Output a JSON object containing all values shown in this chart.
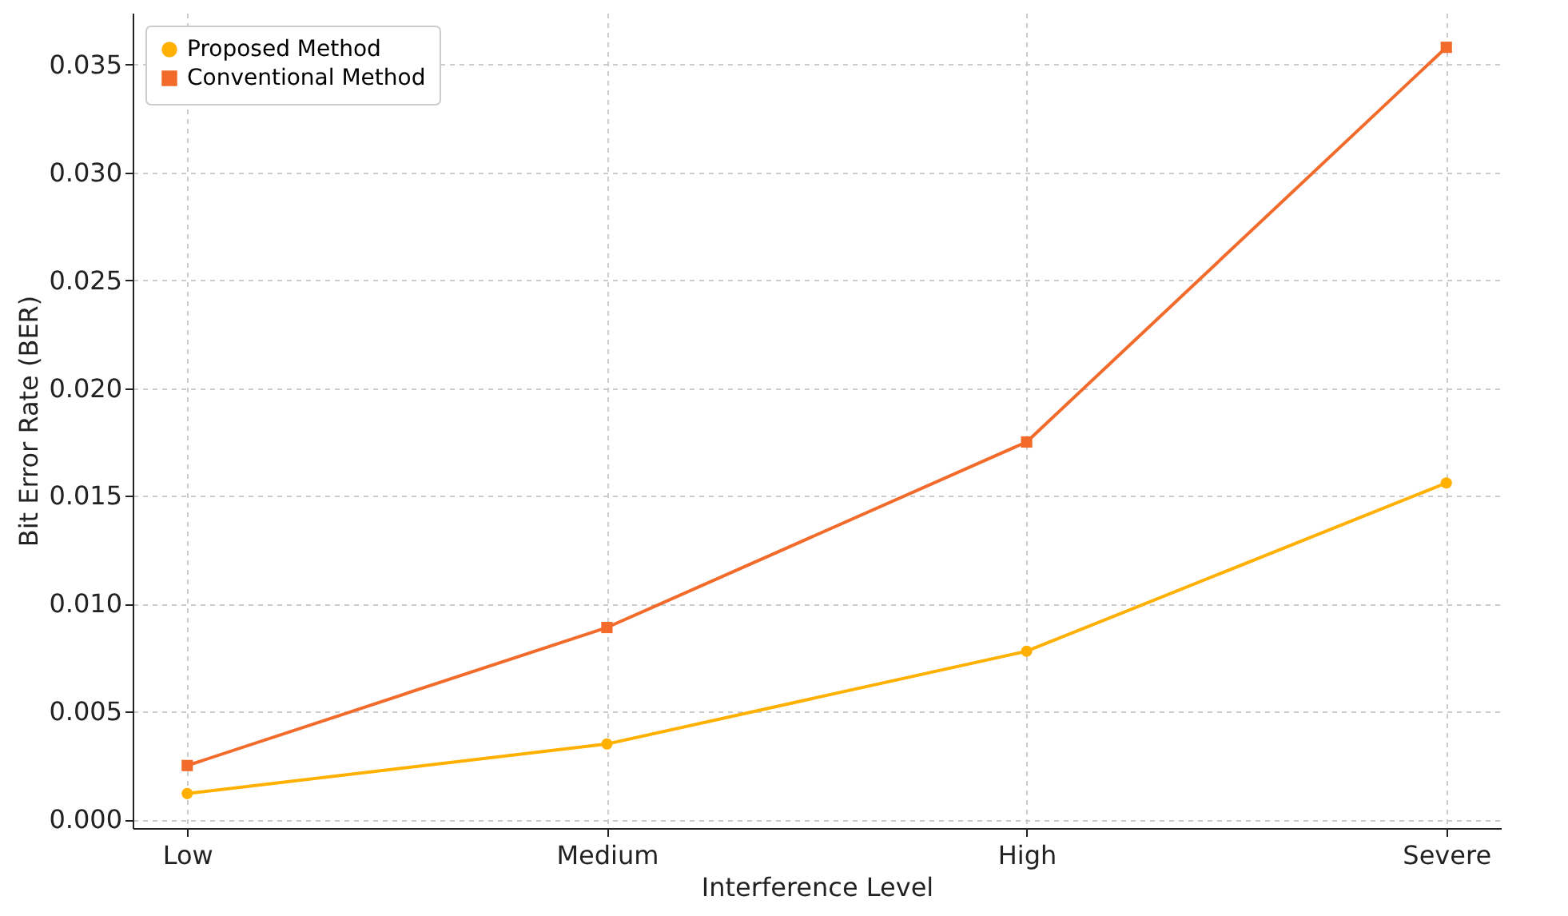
{
  "chart_data": {
    "type": "line",
    "xlabel": "Interference Level",
    "ylabel": "Bit Error Rate (BER)",
    "categories": [
      "Low",
      "Medium",
      "High",
      "Severe"
    ],
    "series": [
      {
        "name": "Proposed Method",
        "color": "#ffb000",
        "marker": "circle",
        "values": [
          0.0012,
          0.0035,
          0.0078,
          0.0156
        ]
      },
      {
        "name": "Conventional Method",
        "color": "#f26b2a",
        "marker": "square",
        "values": [
          0.0025,
          0.0089,
          0.0175,
          0.0358
        ]
      }
    ],
    "ylim": [
      -0.0004,
      0.0374
    ],
    "yticks": [
      {
        "value": 0,
        "label": "0.000"
      },
      {
        "value": 0.005,
        "label": "0.005"
      },
      {
        "value": 0.01,
        "label": "0.010"
      },
      {
        "value": 0.015,
        "label": "0.015"
      },
      {
        "value": 0.02,
        "label": "0.020"
      },
      {
        "value": 0.025,
        "label": "0.025"
      },
      {
        "value": 0.03,
        "label": "0.030"
      },
      {
        "value": 0.035,
        "label": "0.035"
      }
    ],
    "grid": true,
    "legend": "top left",
    "line_style": "solid"
  }
}
